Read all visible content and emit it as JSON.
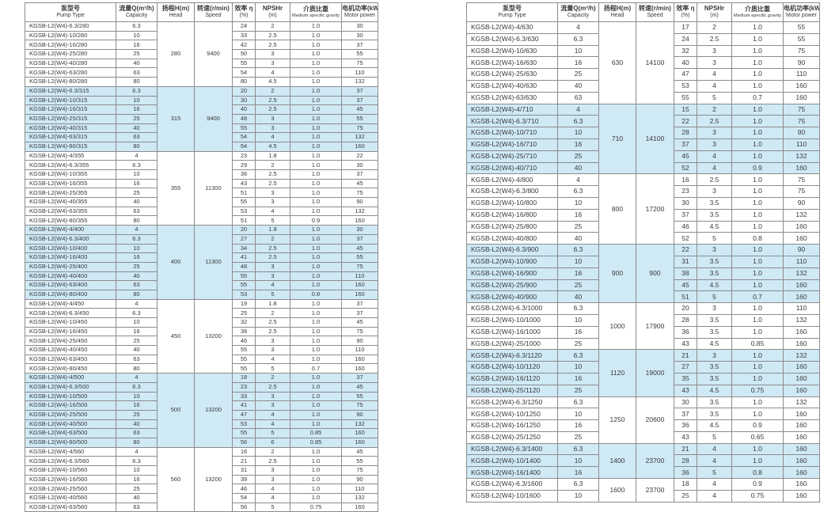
{
  "colors": {
    "highlight_row": "#cfe9f5",
    "border": "#8c8c8c",
    "outer_border": "#4d4d4d",
    "text": "#3a3a3a",
    "background": "#ffffff"
  },
  "columns": [
    {
      "zh": "泵型号",
      "en": "Pump Type"
    },
    {
      "zh": "流量Q(m³/h)",
      "en": "Capacity"
    },
    {
      "zh": "扬程H(m)",
      "en": "Head"
    },
    {
      "zh": "转速(r/min)",
      "en": "Speed"
    },
    {
      "zh": "效率 η",
      "en": "(%)"
    },
    {
      "zh": "NPSHr",
      "en": "(m)"
    },
    {
      "zh": "介质比重",
      "en": "Medium specific gravity"
    },
    {
      "zh": "电机功率(kW)",
      "en": "Motor power"
    }
  ],
  "left_table": {
    "groups": [
      {
        "head": "280",
        "speed": "9400",
        "highlight": false,
        "rows": [
          [
            "KGSB-L2(W4)-6.3/280",
            "6.3",
            "24",
            "2",
            "1.0",
            "30"
          ],
          [
            "KGSB-L2(W4)-10/280",
            "10",
            "33",
            "2.5",
            "1.0",
            "30"
          ],
          [
            "KGSB-L2(W4)-16/280",
            "16",
            "42",
            "2.5",
            "1.0",
            "37"
          ],
          [
            "KGSB-L2(W4)-25/280",
            "25",
            "50",
            "3",
            "1.0",
            "55"
          ],
          [
            "KGSB-L2(W4)-40/280",
            "40",
            "55",
            "3",
            "1.0",
            "75"
          ],
          [
            "KGSB-L2(W4)-63/280",
            "63",
            "54",
            "4",
            "1.0",
            "110"
          ],
          [
            "KGSB-L2(W4)-80/280",
            "80",
            "80",
            "4.5",
            "1.0",
            "132"
          ]
        ]
      },
      {
        "head": "315",
        "speed": "9400",
        "highlight": true,
        "rows": [
          [
            "KGSB-L2(W4)-6.3/315",
            "6.3",
            "20",
            "2",
            "1.0",
            "37"
          ],
          [
            "KGSB-L2(W4)-10/315",
            "10",
            "30",
            "2.5",
            "1.0",
            "37"
          ],
          [
            "KGSB-L2(W4)-16/315",
            "16",
            "40",
            "2.5",
            "1.0",
            "45"
          ],
          [
            "KGSB-L2(W4)-25/315",
            "25",
            "48",
            "3",
            "1.0",
            "55"
          ],
          [
            "KGSB-L2(W4)-40/315",
            "40",
            "55",
            "3",
            "1.0",
            "75"
          ],
          [
            "KGSB-L2(W4)-63/315",
            "63",
            "54",
            "4",
            "1.0",
            "132"
          ],
          [
            "KGSB-L2(W4)-80/315",
            "80",
            "54",
            "4.5",
            "1.0",
            "160"
          ]
        ]
      },
      {
        "head": "355",
        "speed": "11300",
        "highlight": false,
        "rows": [
          [
            "KGSB-L2(W4)-4/355",
            "4",
            "23",
            "1.8",
            "1.0",
            "22"
          ],
          [
            "KGSB-L2(W4)-6.3/355",
            "6.3",
            "29",
            "2",
            "1.0",
            "30"
          ],
          [
            "KGSB-L2(W4)-10/355",
            "10",
            "36",
            "2.5",
            "1.0",
            "37"
          ],
          [
            "KGSB-L2(W4)-16/355",
            "16",
            "43",
            "2.5",
            "1.0",
            "45"
          ],
          [
            "KGSB-L2(W4)-25/355",
            "25",
            "51",
            "3",
            "1.0",
            "75"
          ],
          [
            "KGSB-L2(W4)-40/355",
            "40",
            "55",
            "3",
            "1.0",
            "90"
          ],
          [
            "KGSB-L2(W4)-63/355",
            "63",
            "53",
            "4",
            "1.0",
            "132"
          ],
          [
            "KGSB-L2(W4)-80/355",
            "80",
            "51",
            "5",
            "0.9",
            "160"
          ]
        ]
      },
      {
        "head": "400",
        "speed": "11300",
        "highlight": true,
        "rows": [
          [
            "KGSB-L2(W4)-4/400",
            "4",
            "20",
            "1.8",
            "1.0",
            "30"
          ],
          [
            "KGSB-L2(W4)-6.3/400",
            "6.3",
            "27",
            "2",
            "1.0",
            "37"
          ],
          [
            "KGSB-L2(W4)-10/400",
            "10",
            "34",
            "2.5",
            "1.0",
            "45"
          ],
          [
            "KGSB-L2(W4)-16/400",
            "16",
            "41",
            "2.5",
            "1.0",
            "55"
          ],
          [
            "KGSB-L2(W4)-25/400",
            "25",
            "48",
            "3",
            "1.0",
            "75"
          ],
          [
            "KGSB-L2(W4)-40/400",
            "40",
            "55",
            "3",
            "1.0",
            "110"
          ],
          [
            "KGSB-L2(W4)-63/400",
            "63",
            "55",
            "4",
            "1.0",
            "160"
          ],
          [
            "KGSB-L2(W4)-80/400",
            "80",
            "53",
            "5",
            "0.8",
            "160"
          ]
        ]
      },
      {
        "head": "450",
        "speed": "13200",
        "highlight": false,
        "rows": [
          [
            "KGSB-L2(W4)-4/450",
            "4",
            "19",
            "1.8",
            "1.0",
            "37"
          ],
          [
            "KGSB-L2(W4)-6.3/450",
            "6.3",
            "25",
            "2",
            "1.0",
            "37"
          ],
          [
            "KGSB-L2(W4)-10/450",
            "10",
            "32",
            "2.5",
            "1.0",
            "45"
          ],
          [
            "KGSB-L2(W4)-16/450",
            "16",
            "38",
            "2.5",
            "1.0",
            "75"
          ],
          [
            "KGSB-L2(W4)-25/450",
            "25",
            "46",
            "3",
            "1.0",
            "90"
          ],
          [
            "KGSB-L2(W4)-40/450",
            "40",
            "55",
            "3",
            "1.0",
            "110"
          ],
          [
            "KGSB-L2(W4)-63/450",
            "63",
            "55",
            "4",
            "1.0",
            "160"
          ],
          [
            "KGSB-L2(W4)-80/450",
            "80",
            "55",
            "5",
            "0.7",
            "160"
          ]
        ]
      },
      {
        "head": "500",
        "speed": "13200",
        "highlight": true,
        "rows": [
          [
            "KGSB-L2(W4)-4/500",
            "4",
            "18",
            "2",
            "1.0",
            "37"
          ],
          [
            "KGSB-L2(W4)-6.3/500",
            "6.3",
            "23",
            "2.5",
            "1.0",
            "45"
          ],
          [
            "KGSB-L2(W4)-10/500",
            "10",
            "33",
            "3",
            "1.0",
            "55"
          ],
          [
            "KGSB-L2(W4)-16/500",
            "16",
            "41",
            "3",
            "1.0",
            "75"
          ],
          [
            "KGSB-L2(W4)-25/500",
            "25",
            "47",
            "4",
            "1.0",
            "90"
          ],
          [
            "KGSB-L2(W4)-40/500",
            "40",
            "53",
            "4",
            "1.0",
            "132"
          ],
          [
            "KGSB-L2(W4)-63/500",
            "63",
            "55",
            "5",
            "0.85",
            "160"
          ],
          [
            "KGSB-L2(W4)-80/500",
            "80",
            "56",
            "6",
            "0.85",
            "160"
          ]
        ]
      },
      {
        "head": "560",
        "speed": "13200",
        "highlight": false,
        "rows": [
          [
            "KGSB-L2(W4)-4/560",
            "4",
            "16",
            "2",
            "1.0",
            "45"
          ],
          [
            "KGSB-L2(W4)-6.3/560",
            "6.3",
            "21",
            "2.5",
            "1.0",
            "55"
          ],
          [
            "KGSB-L2(W4)-10/560",
            "10",
            "31",
            "3",
            "1.0",
            "75"
          ],
          [
            "KGSB-L2(W4)-16/560",
            "16",
            "39",
            "3",
            "1.0",
            "90"
          ],
          [
            "KGSB-L2(W4)-25/560",
            "25",
            "46",
            "4",
            "1.0",
            "110"
          ],
          [
            "KGSB-L2(W4)-40/560",
            "40",
            "54",
            "4",
            "1.0",
            "132"
          ],
          [
            "KGSB-L2(W4)-63/560",
            "63",
            "56",
            "5",
            "0.75",
            "160"
          ]
        ]
      }
    ]
  },
  "right_table": {
    "groups": [
      {
        "head": "630",
        "speed": "14100",
        "highlight": false,
        "rows": [
          [
            "KGSB-L2(W4)-4/630",
            "4",
            "17",
            "2",
            "1.0",
            "55"
          ],
          [
            "KGSB-L2(W4)-6.3/630",
            "6.3",
            "24",
            "2.5",
            "1.0",
            "55"
          ],
          [
            "KGSB-L2(W4)-10/630",
            "10",
            "32",
            "3",
            "1.0",
            "75"
          ],
          [
            "KGSB-L2(W4)-16/630",
            "16",
            "40",
            "3",
            "1.0",
            "90"
          ],
          [
            "KGSB-L2(W4)-25/630",
            "25",
            "47",
            "4",
            "1.0",
            "110"
          ],
          [
            "KGSB-L2(W4)-40/630",
            "40",
            "53",
            "4",
            "1.0",
            "160"
          ],
          [
            "KGSB-L2(W4)-63/630",
            "63",
            "55",
            "5",
            "0.7",
            "160"
          ]
        ]
      },
      {
        "head": "710",
        "speed": "14100",
        "highlight": true,
        "rows": [
          [
            "KGSB-L2(W4)-4/710",
            "4",
            "15",
            "2",
            "1.0",
            "75"
          ],
          [
            "KGSB-L2(W4)-6.3/710",
            "6.3",
            "22",
            "2.5",
            "1.0",
            "75"
          ],
          [
            "KGSB-L2(W4)-10/710",
            "10",
            "28",
            "3",
            "1.0",
            "90"
          ],
          [
            "KGSB-L2(W4)-16/710",
            "16",
            "37",
            "3",
            "1.0",
            "110"
          ],
          [
            "KGSB-L2(W4)-25/710",
            "25",
            "45",
            "4",
            "1.0",
            "132"
          ],
          [
            "KGSB-L2(W4)-40/710",
            "40",
            "52",
            "4",
            "0.9",
            "160"
          ]
        ]
      },
      {
        "head": "800",
        "speed": "17200",
        "highlight": false,
        "rows": [
          [
            "KGSB-L2(W4)-4/800",
            "4",
            "16",
            "2.5",
            "1.0",
            "75"
          ],
          [
            "KGSB-L2(W4)-6.3/800",
            "6.3",
            "23",
            "3",
            "1.0",
            "75"
          ],
          [
            "KGSB-L2(W4)-10/800",
            "10",
            "30",
            "3.5",
            "1.0",
            "90"
          ],
          [
            "KGSB-L2(W4)-16/800",
            "16",
            "37",
            "3.5",
            "1.0",
            "132"
          ],
          [
            "KGSB-L2(W4)-25/800",
            "25",
            "46",
            "4.5",
            "1.0",
            "160"
          ],
          [
            "KGSB-L2(W4)-40/800",
            "40",
            "52",
            "5",
            "0.8",
            "160"
          ]
        ]
      },
      {
        "head": "900",
        "speed": "900",
        "highlight": true,
        "rows": [
          [
            "KGSB-L2(W4)-6.3/900",
            "6.3",
            "22",
            "3",
            "1.0",
            "90"
          ],
          [
            "KGSB-L2(W4)-10/900",
            "10",
            "31",
            "3.5",
            "1.0",
            "110"
          ],
          [
            "KGSB-L2(W4)-16/900",
            "16",
            "38",
            "3.5",
            "1.0",
            "132"
          ],
          [
            "KGSB-L2(W4)-25/900",
            "25",
            "45",
            "4.5",
            "1.0",
            "160"
          ],
          [
            "KGSB-L2(W4)-40/900",
            "40",
            "51",
            "5",
            "0.7",
            "160"
          ]
        ]
      },
      {
        "head": "1000",
        "speed": "17900",
        "highlight": false,
        "rows": [
          [
            "KGSB-L2(W4)-6.3/1000",
            "6.3",
            "20",
            "3",
            "1.0",
            "110"
          ],
          [
            "KGSB-L2(W4)-10/1000",
            "10",
            "28",
            "3.5",
            "1.0",
            "132"
          ],
          [
            "KGSB-L2(W4)-16/1000",
            "16",
            "36",
            "3.5",
            "1.0",
            "160"
          ],
          [
            "KGSB-L2(W4)-25/1000",
            "25",
            "43",
            "4.5",
            "0.85",
            "160"
          ]
        ]
      },
      {
        "head": "1120",
        "speed": "19000",
        "highlight": true,
        "rows": [
          [
            "KGSB-L2(W4)-6.3/1120",
            "6.3",
            "21",
            "3",
            "1.0",
            "132"
          ],
          [
            "KGSB-L2(W4)-10/1120",
            "10",
            "27",
            "3.5",
            "1.0",
            "160"
          ],
          [
            "KGSB-L2(W4)-16/1120",
            "16",
            "35",
            "3.5",
            "1.0",
            "160"
          ],
          [
            "KGSB-L2(W4)-25/1120",
            "25",
            "43",
            "4.5",
            "0.75",
            "160"
          ]
        ]
      },
      {
        "head": "1250",
        "speed": "20600",
        "highlight": false,
        "rows": [
          [
            "KGSB-L2(W4)-6.3/1250",
            "6.3",
            "30",
            "3.5",
            "1.0",
            "132"
          ],
          [
            "KGSB-L2(W4)-10/1250",
            "10",
            "37",
            "3.5",
            "1.0",
            "160"
          ],
          [
            "KGSB-L2(W4)-16/1250",
            "16",
            "36",
            "4.5",
            "0.9",
            "160"
          ],
          [
            "KGSB-L2(W4)-25/1250",
            "25",
            "43",
            "5",
            "0.65",
            "160"
          ]
        ]
      },
      {
        "head": "1400",
        "speed": "23700",
        "highlight": true,
        "rows": [
          [
            "KGSB-L2(W4)-6.3/1400",
            "6.3",
            "21",
            "4",
            "1.0",
            "160"
          ],
          [
            "KGSB-L2(W4)-10/1400",
            "10",
            "28",
            "4",
            "1.0",
            "160"
          ],
          [
            "KGSB-L2(W4)-16/1400",
            "16",
            "36",
            "5",
            "0.8",
            "160"
          ]
        ]
      },
      {
        "head": "1600",
        "speed": "23700",
        "highlight": false,
        "rows": [
          [
            "KGSB-L2(W4)-6.3/1600",
            "6.3",
            "18",
            "4",
            "0.9",
            "160"
          ],
          [
            "KGSB-L2(W4)-10/1600",
            "10",
            "25",
            "4",
            "0.75",
            "160"
          ]
        ]
      }
    ]
  }
}
